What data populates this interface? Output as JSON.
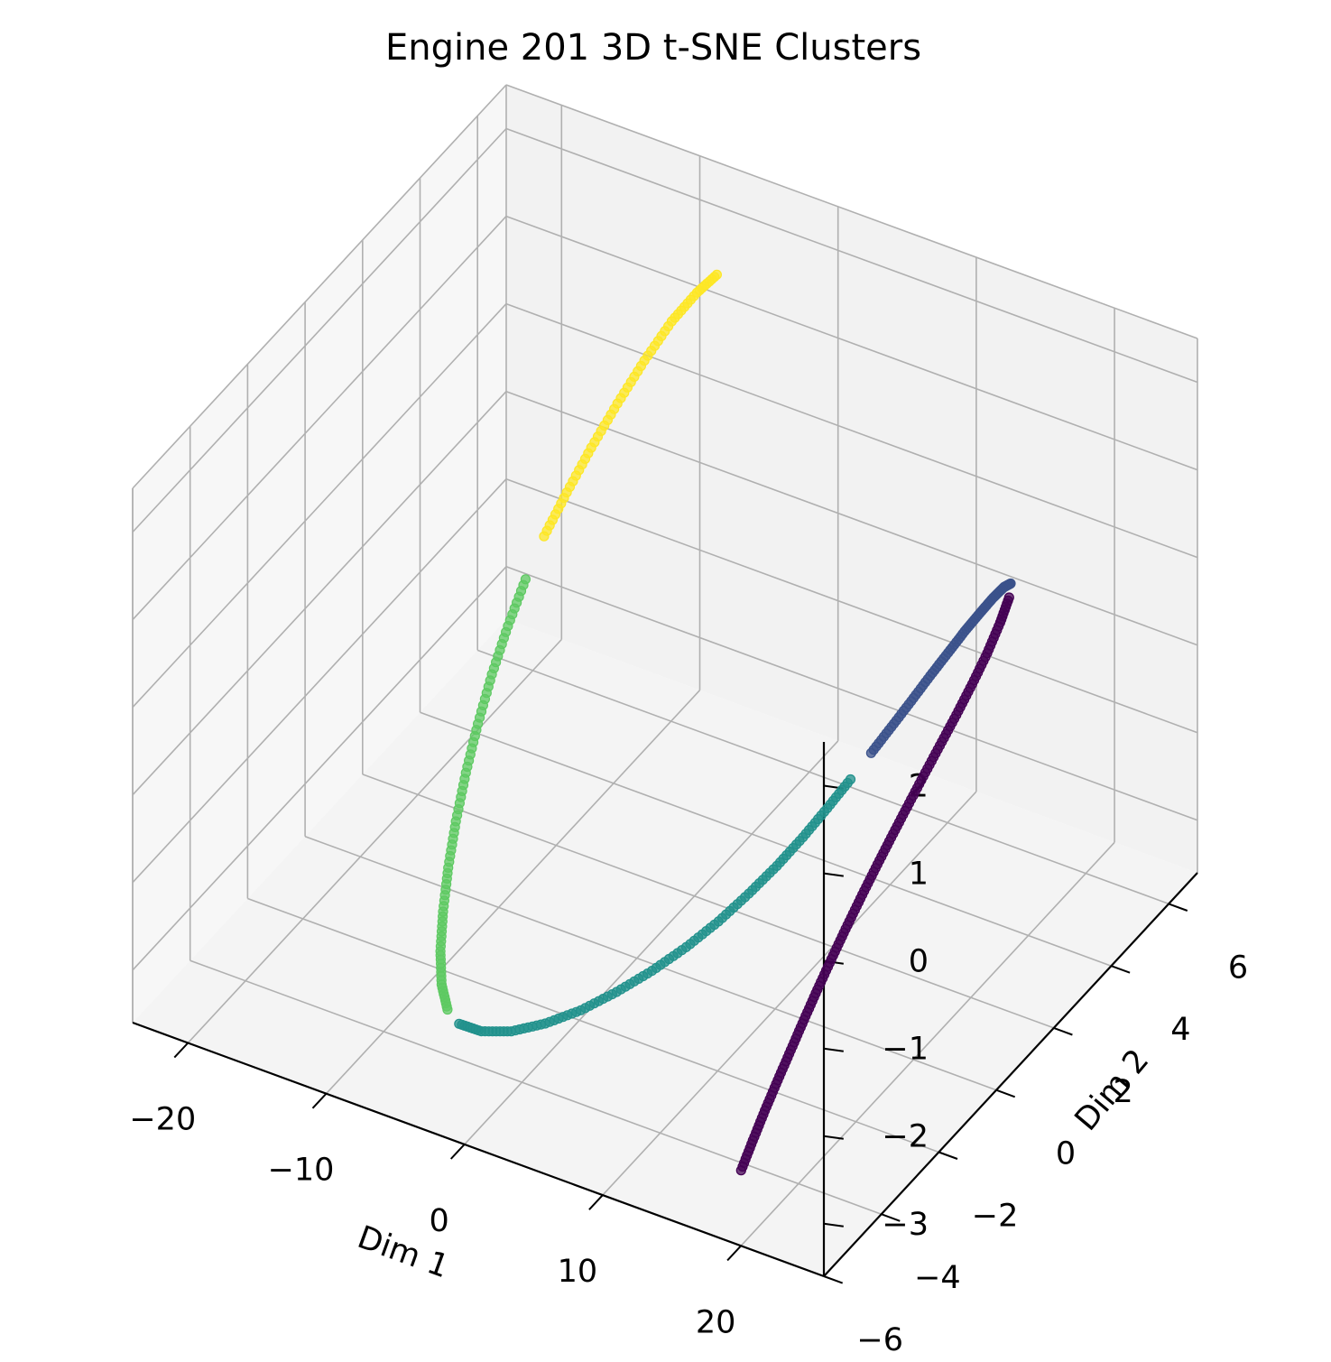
{
  "chart_data": {
    "type": "scatter",
    "projection": "3d",
    "title": "Engine 201 3D t-SNE Clusters",
    "xlabel": "Dim 1",
    "ylabel": "Dim 2",
    "zlabel": "",
    "xlim": [
      -24,
      26
    ],
    "ylim": [
      -6,
      7
    ],
    "zlim": [
      -3.6,
      2.5
    ],
    "xticks": [
      "−20",
      "−10",
      "0",
      "10",
      "20"
    ],
    "yticks": [
      "−6",
      "−4",
      "−2",
      "0",
      "2",
      "4",
      "6"
    ],
    "zticks": [
      "−3",
      "−2",
      "−1",
      "0",
      "1",
      "2"
    ],
    "grid": true,
    "colormap": "viridis",
    "cluster_colors": [
      "#440154",
      "#3b528b",
      "#21918c",
      "#5ec962",
      "#fde725"
    ],
    "series": [
      {
        "cluster": 0,
        "color": "#440154",
        "points": [
          [
            16.94,
            -4.52,
            -3.44
          ],
          [
            17.04,
            -4.16,
            -3.22
          ],
          [
            17.16,
            -3.8,
            -3.0
          ],
          [
            17.3,
            -3.42,
            -2.78
          ],
          [
            17.46,
            -3.04,
            -2.56
          ],
          [
            17.62,
            -2.66,
            -2.34
          ],
          [
            17.8,
            -2.28,
            -2.12
          ],
          [
            18.0,
            -1.89,
            -1.9
          ],
          [
            18.22,
            -1.5,
            -1.68
          ],
          [
            18.46,
            -1.1,
            -1.46
          ],
          [
            18.72,
            -0.7,
            -1.24
          ],
          [
            19.0,
            -0.29,
            -1.02
          ],
          [
            19.3,
            0.12,
            -0.8
          ],
          [
            19.6,
            0.54,
            -0.58
          ],
          [
            19.92,
            0.96,
            -0.36
          ],
          [
            20.24,
            1.38,
            -0.14
          ],
          [
            20.52,
            1.8,
            0.08
          ],
          [
            20.75,
            2.21,
            0.3
          ],
          [
            20.88,
            2.6,
            0.52
          ],
          [
            20.9,
            2.9,
            0.7
          ]
        ]
      },
      {
        "cluster": 1,
        "color": "#3b528b",
        "points": [
          [
            20.72,
            3.04,
            0.8
          ],
          [
            20.28,
            3.02,
            0.74
          ],
          [
            19.7,
            2.92,
            0.62
          ],
          [
            19.05,
            2.77,
            0.46
          ],
          [
            18.35,
            2.58,
            0.28
          ],
          [
            17.61,
            2.36,
            0.07
          ],
          [
            16.83,
            2.11,
            -0.15
          ],
          [
            16.02,
            1.84,
            -0.39
          ],
          [
            15.19,
            1.55,
            -0.63
          ],
          [
            14.35,
            1.25,
            -0.87
          ]
        ]
      },
      {
        "cluster": 2,
        "color": "#21918c",
        "points": [
          [
            13.5,
            0.94,
            -1.11
          ],
          [
            12.55,
            0.59,
            -1.37
          ],
          [
            11.55,
            0.22,
            -1.63
          ],
          [
            10.48,
            -0.17,
            -1.88
          ],
          [
            9.3,
            -0.58,
            -2.12
          ],
          [
            8.0,
            -1.01,
            -2.36
          ],
          [
            6.58,
            -1.45,
            -2.58
          ],
          [
            5.04,
            -1.9,
            -2.78
          ],
          [
            3.4,
            -2.34,
            -2.96
          ],
          [
            1.68,
            -2.76,
            -3.12
          ],
          [
            -0.1,
            -3.14,
            -3.24
          ],
          [
            -1.9,
            -3.46,
            -3.32
          ],
          [
            -3.6,
            -3.68,
            -3.34
          ],
          [
            -5.0,
            -3.78,
            -3.3
          ]
        ]
      },
      {
        "cluster": 3,
        "color": "#5ec962",
        "points": [
          [
            -5.9,
            -3.75,
            -3.2
          ],
          [
            -6.6,
            -3.62,
            -3.0
          ],
          [
            -7.1,
            -3.42,
            -2.72
          ],
          [
            -7.45,
            -3.16,
            -2.38
          ],
          [
            -7.7,
            -2.86,
            -2.0
          ],
          [
            -7.85,
            -2.52,
            -1.6
          ],
          [
            -7.9,
            -2.15,
            -1.18
          ],
          [
            -7.86,
            -1.75,
            -0.76
          ],
          [
            -7.74,
            -1.32,
            -0.34
          ],
          [
            -7.54,
            -0.86,
            0.06
          ],
          [
            -7.26,
            -0.38,
            0.44
          ]
        ]
      },
      {
        "cluster": 4,
        "color": "#fde725",
        "points": [
          [
            -6.92,
            0.1,
            0.78
          ],
          [
            -6.48,
            0.68,
            1.1
          ],
          [
            -6.0,
            1.3,
            1.42
          ],
          [
            -5.48,
            1.96,
            1.72
          ],
          [
            -4.94,
            2.64,
            2.0
          ],
          [
            -4.38,
            3.32,
            2.24
          ],
          [
            -3.84,
            3.94,
            2.38
          ],
          [
            -3.4,
            4.42,
            2.44
          ]
        ]
      }
    ]
  }
}
